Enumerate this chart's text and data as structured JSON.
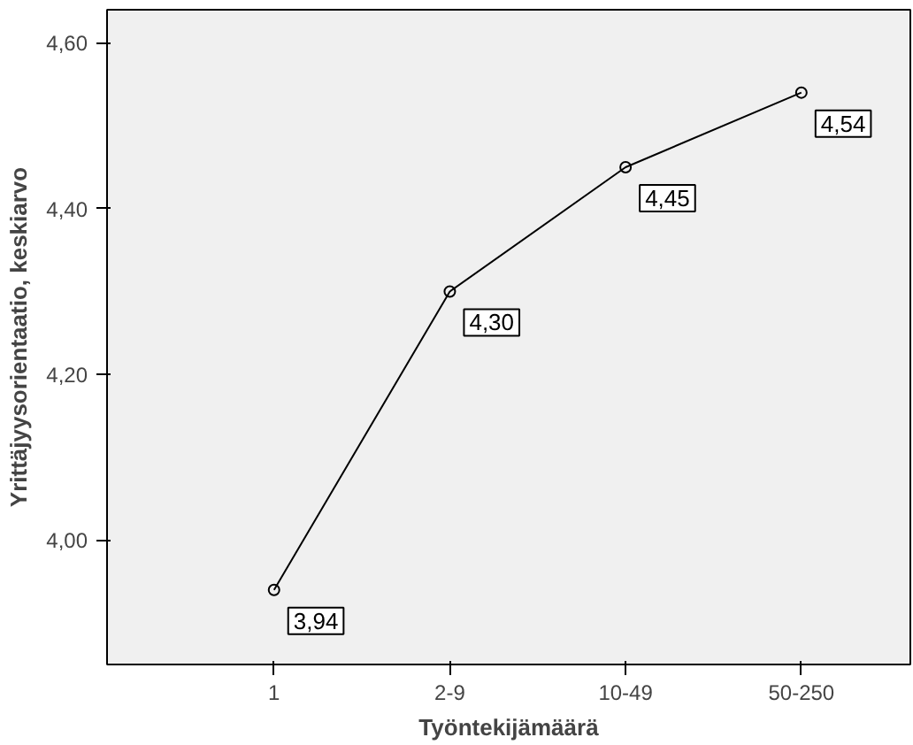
{
  "chart_data": {
    "type": "line",
    "xlabel": "Työntekijämäärä",
    "ylabel": "Yrittäjyysorientaatio, keskiarvo",
    "categories": [
      "1",
      "2-9",
      "10-49",
      "50-250"
    ],
    "series": [
      {
        "color": "#000000",
        "values": [
          3.94,
          4.3,
          4.45,
          4.54
        ],
        "value_labels": [
          "3,94",
          "4,30",
          "4,45",
          "4,54"
        ]
      }
    ],
    "ylim": [
      3.85,
      4.64
    ],
    "yticks": [
      {
        "value": 4.0,
        "label": "4,00"
      },
      {
        "value": 4.2,
        "label": "4,20"
      },
      {
        "value": 4.4,
        "label": "4,40"
      },
      {
        "value": 4.6,
        "label": "4,60"
      }
    ],
    "marker": "circle",
    "line_style": "solid",
    "grid": false
  }
}
